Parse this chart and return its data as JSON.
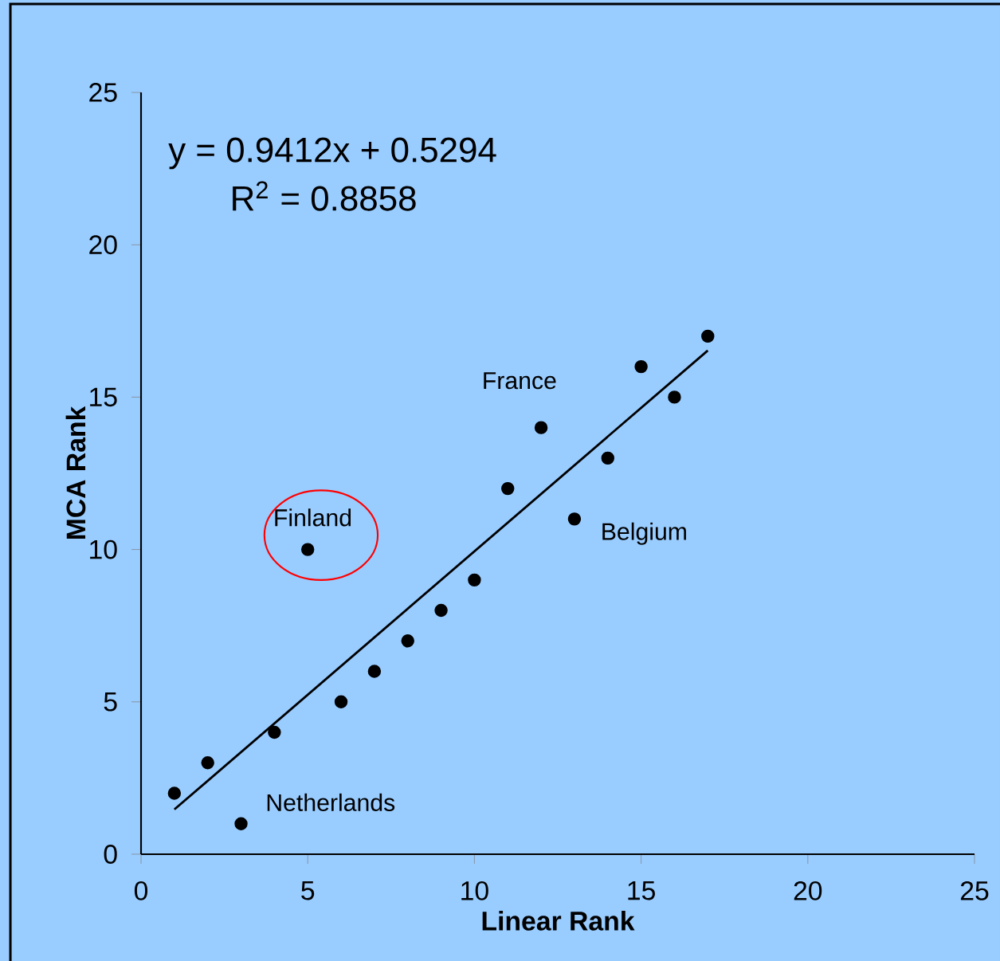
{
  "chart_data": {
    "type": "scatter",
    "xlabel": "Linear Rank",
    "ylabel": "MCA Rank",
    "xlim": [
      0,
      25
    ],
    "ylim": [
      0,
      25
    ],
    "xticks": [
      0,
      5,
      10,
      15,
      20,
      25
    ],
    "yticks": [
      0,
      5,
      10,
      15,
      20,
      25
    ],
    "grid": false,
    "x": [
      1,
      2,
      3,
      4,
      5,
      6,
      7,
      8,
      9,
      10,
      11,
      12,
      13,
      14,
      15,
      16,
      17
    ],
    "series": [
      {
        "color": "#000000",
        "marker": "circle",
        "values": [
          2,
          3,
          1,
          4,
          10,
          5,
          6,
          7,
          8,
          9,
          12,
          14,
          11,
          13,
          16,
          15,
          17
        ]
      },
      {
        "type": "line",
        "color": "#000000",
        "marker": "none",
        "x": [
          1,
          17
        ],
        "values": [
          1.47,
          16.53
        ]
      }
    ],
    "annotations": [
      "y = 0.9412x + 0.5294",
      "R$^{2}$ = 0.8858",
      {
        "text": "Finland",
        "x": 5,
        "y": 10
      },
      {
        "text": "France",
        "x": 12,
        "y": 14
      },
      {
        "text": "Belgium",
        "x": 13,
        "y": 11
      },
      {
        "text": "Netherlands",
        "x": 3,
        "y": 1
      }
    ]
  }
}
